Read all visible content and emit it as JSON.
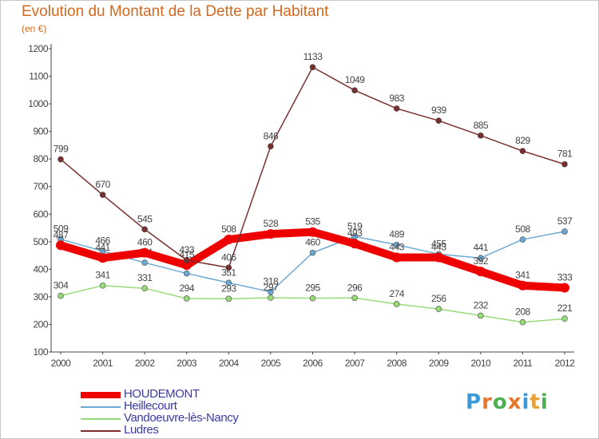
{
  "title": "Evolution du Montant de la Dette par Habitant",
  "unit_label": "(en €)",
  "logo": {
    "text": "Proxiti",
    "colors": [
      "#3a9ad9",
      "#e8772e",
      "#4caf50",
      "#e8772e",
      "#3a9ad9",
      "#e8a23a",
      "#4caf50"
    ]
  },
  "chart_data": {
    "type": "line",
    "title": "Evolution du Montant de la Dette par Habitant",
    "ylabel": "(en €)",
    "x": [
      "2000",
      "2001",
      "2002",
      "2003",
      "2004",
      "2005",
      "2006",
      "2007",
      "2008",
      "2009",
      "2010",
      "2011",
      "2012"
    ],
    "ylim": [
      100,
      1200
    ],
    "yticks": [
      100,
      200,
      300,
      400,
      500,
      600,
      700,
      800,
      900,
      1000,
      1100,
      1200
    ],
    "grid": false,
    "legend_position": "bottom-left",
    "series": [
      {
        "name": "HOUDEMONT",
        "color": "#ee0000",
        "bold": true,
        "values": [
          487,
          441,
          460,
          415,
          508,
          528,
          535,
          493,
          443,
          443,
          392,
          341,
          333
        ]
      },
      {
        "name": "Heillecourt",
        "color": "#6da9d2",
        "bold": false,
        "values": [
          509,
          466,
          424,
          385,
          351,
          318,
          460,
          519,
          489,
          455,
          441,
          508,
          537
        ]
      },
      {
        "name": "Vandoeuvre-lès-Nancy",
        "color": "#98d97a",
        "bold": false,
        "values": [
          304,
          341,
          331,
          294,
          293,
          297,
          295,
          296,
          274,
          256,
          232,
          208,
          221
        ]
      },
      {
        "name": "Ludres",
        "color": "#7a2f2f",
        "bold": false,
        "values": [
          799,
          670,
          545,
          433,
          406,
          846,
          1133,
          1049,
          983,
          939,
          885,
          829,
          781
        ]
      }
    ]
  }
}
